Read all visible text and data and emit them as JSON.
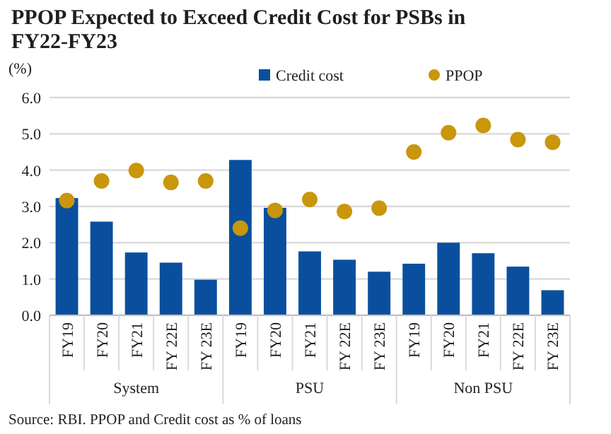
{
  "chart_data": {
    "type": "bar",
    "title": "PPOP Expected to Exceed Credit Cost for PSBs in FY22-FY23",
    "ylabel": "(%)",
    "categories": [
      "FY19",
      "FY20",
      "FY21",
      "FY 22E",
      "FY 23E",
      "FY19",
      "FY20",
      "FY21",
      "FY 22E",
      "FY 23E",
      "FY19",
      "FY20",
      "FY21",
      "FY 22E",
      "FY 23E"
    ],
    "series": [
      {
        "name": "Credit cost",
        "color": "#0a4f9e",
        "values": [
          3.23,
          2.58,
          1.73,
          1.45,
          0.98,
          4.28,
          2.96,
          1.76,
          1.53,
          1.2,
          1.42,
          2.0,
          1.71,
          1.34,
          0.69
        ]
      },
      {
        "name": "PPOP",
        "type": "scatter",
        "color": "#c9960c",
        "marker": "circle",
        "values": [
          3.16,
          3.7,
          3.99,
          3.66,
          3.7,
          2.4,
          2.89,
          3.19,
          2.86,
          2.95,
          4.5,
          5.03,
          5.23,
          4.84,
          4.77
        ]
      }
    ],
    "ylim": [
      0,
      6
    ],
    "yticks": [
      {
        "value": 0,
        "label": "0.0"
      },
      {
        "value": 1,
        "label": "1.0"
      },
      {
        "value": 2,
        "label": "2.0"
      },
      {
        "value": 3,
        "label": "3.0"
      },
      {
        "value": 4,
        "label": "4.0"
      },
      {
        "value": 5,
        "label": "5.0"
      },
      {
        "value": 6,
        "label": "6.0"
      }
    ],
    "grid": "y",
    "legend": "top",
    "annotations": [
      "System",
      "PSU",
      "Non PSU",
      "Source: RBI. PPOP and Credit cost as % of loans"
    ]
  }
}
